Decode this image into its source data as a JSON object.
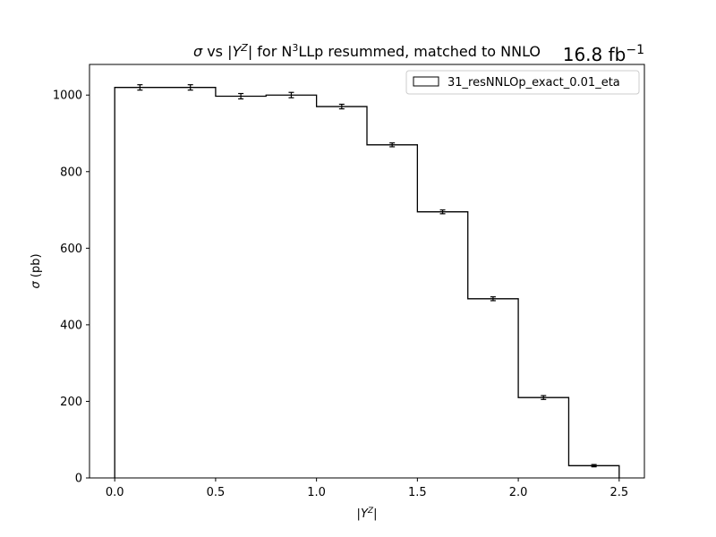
{
  "chart_data": {
    "type": "histogram",
    "title": "σ vs |Y^Z| for N^3LLp resummed, matched to NNLO",
    "title_parts": {
      "sigma": "σ",
      "vs": " vs |",
      "Y": "Y",
      "Z_sup": "Z",
      "after": "| for N",
      "three_sup": "3",
      "rest": "LLp resummed, matched to NNLO"
    },
    "luminosity": {
      "value": "16.8 fb",
      "exponent": "−1"
    },
    "xlabel": "|Y^Z|",
    "xlabel_parts": {
      "open": "|",
      "Y": "Y",
      "Z_sup": "Z",
      "close": "|"
    },
    "ylabel": "σ (pb)",
    "ylabel_parts": {
      "sigma": "σ",
      "unit": " (pb)"
    },
    "xlim": [
      -0.125,
      2.625
    ],
    "ylim": [
      0,
      1080
    ],
    "xticks": [
      0.0,
      0.5,
      1.0,
      1.5,
      2.0,
      2.5
    ],
    "xtick_labels": [
      "0.0",
      "0.5",
      "1.0",
      "1.5",
      "2.0",
      "2.5"
    ],
    "yticks": [
      0,
      200,
      400,
      600,
      800,
      1000
    ],
    "ytick_labels": [
      "0",
      "200",
      "400",
      "600",
      "800",
      "1000"
    ],
    "grid": false,
    "legend_position": "top-right",
    "series": [
      {
        "name": "31_resNNLOp_exact_0.01_eta",
        "color": "#000000",
        "bin_edges": [
          0.0,
          0.25,
          0.5,
          0.75,
          1.0,
          1.25,
          1.5,
          1.75,
          2.0,
          2.25,
          2.5
        ],
        "values": [
          1020,
          1020,
          997,
          1000,
          970,
          870,
          695,
          468,
          210,
          32
        ],
        "errors": [
          7,
          7,
          7,
          7,
          6,
          5,
          5,
          5,
          5,
          3
        ]
      }
    ]
  }
}
